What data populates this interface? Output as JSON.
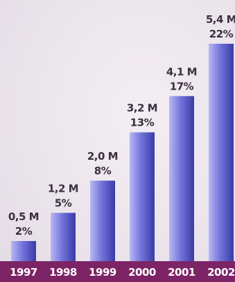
{
  "chart_data": {
    "type": "bar",
    "title": "",
    "xlabel": "",
    "ylabel": "",
    "categories": [
      "1997",
      "1998",
      "1999",
      "2000",
      "2001",
      "2002"
    ],
    "values": [
      0.5,
      1.2,
      2.0,
      3.2,
      4.1,
      5.4
    ],
    "value_labels": [
      "0,5 M",
      "1,2 M",
      "2,0 M",
      "3,2 M",
      "4,1 M",
      "5,4 M"
    ],
    "percent_labels": [
      "2%",
      "5%",
      "8%",
      "13%",
      "17%",
      "22%"
    ],
    "ylim": [
      0,
      5.6
    ],
    "grid": false,
    "colors": {
      "bar_light": "#b9b9f3",
      "bar_mid": "#7474dc",
      "bar_dark": "#3b3ba8",
      "axis_band": "#7c2466",
      "tick_text": "#ffffff",
      "label_text": "#3b3040"
    }
  }
}
